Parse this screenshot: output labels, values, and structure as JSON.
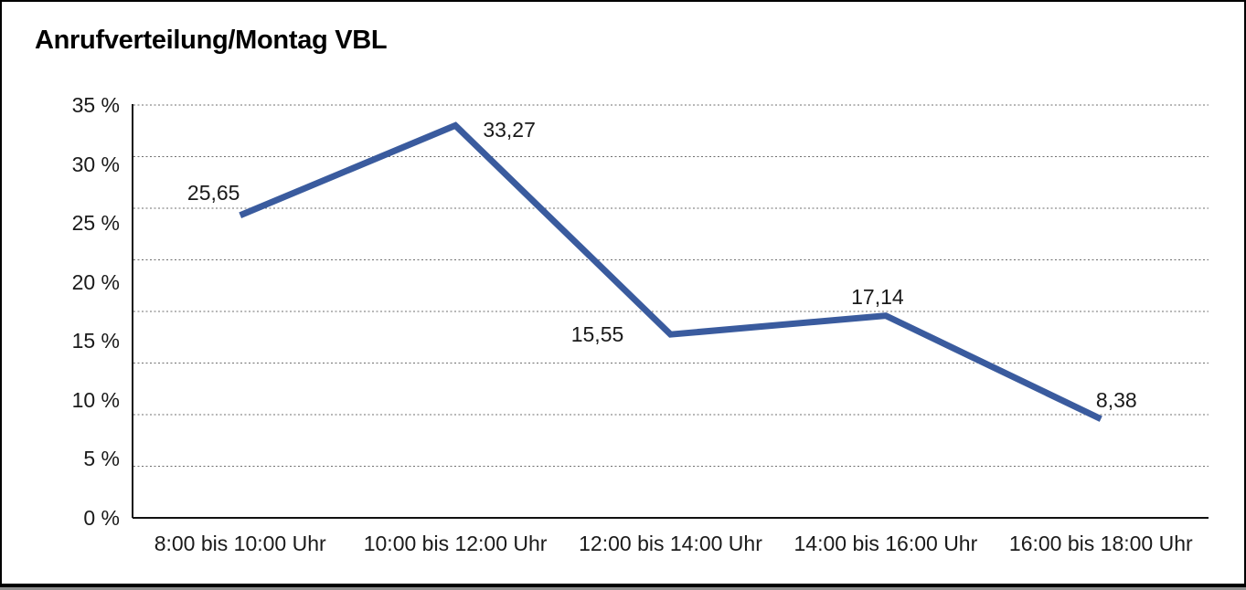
{
  "chart_data": {
    "type": "line",
    "title": "Anrufverteilung/Montag VBL",
    "categories": [
      "8:00 bis 10:00 Uhr",
      "10:00 bis 12:00 Uhr",
      "12:00 bis 14:00 Uhr",
      "14:00 bis 16:00 Uhr",
      "16:00 bis 18:00 Uhr"
    ],
    "values": [
      25.65,
      33.27,
      15.55,
      17.14,
      8.38
    ],
    "value_labels": [
      "25,65",
      "33,27",
      "15,55",
      "17,14",
      "8,38"
    ],
    "y_tick_labels": [
      "0 %",
      "5 %",
      "10 %",
      "15 %",
      "20 %",
      "25 %",
      "30 %",
      "35 %"
    ],
    "xlabel": "",
    "ylabel": "",
    "ylim": [
      0,
      35
    ],
    "grid": "horizontal-dotted",
    "gridline_divisions": 8,
    "legend": "none",
    "line_color": "#3A5B9E",
    "axis_color": "#111111",
    "gridline_color": "#6f6f6f",
    "text_color": "#1a1a1a"
  }
}
